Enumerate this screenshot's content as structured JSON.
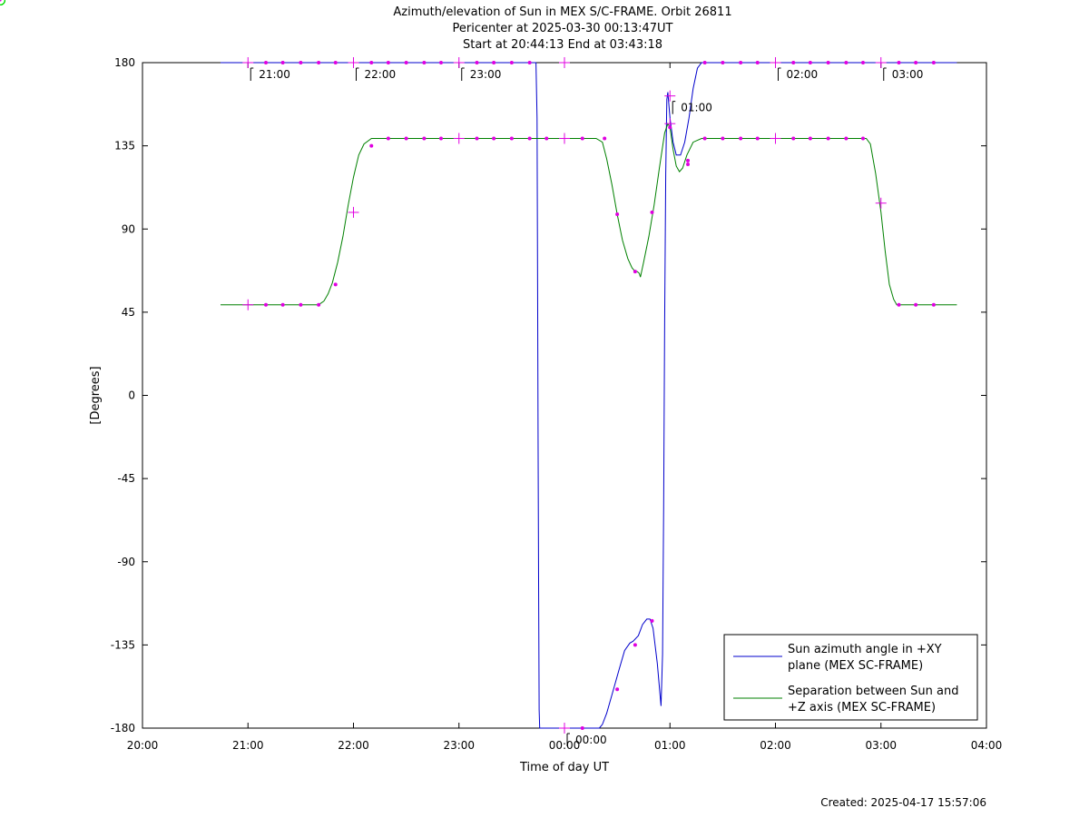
{
  "chart_data": {
    "type": "line",
    "title_lines": [
      "Azimuth/elevation of Sun in MEX S/C-FRAME.  Orbit 26811",
      "Pericenter at 2025-03-30 00:13:47UT",
      "Start at 20:44:13 End at 03:43:18"
    ],
    "xlabel": "Time of day UT",
    "ylabel": "[Degrees]",
    "xlim": [
      20,
      28
    ],
    "ylim": [
      -180,
      180
    ],
    "x_ticks": [
      20,
      21,
      22,
      23,
      24,
      25,
      26,
      27,
      28
    ],
    "x_tick_labels": [
      "20:00",
      "21:00",
      "22:00",
      "23:00",
      "00:00",
      "01:00",
      "02:00",
      "03:00",
      "04:00"
    ],
    "y_ticks": [
      -180,
      -135,
      -90,
      -45,
      0,
      45,
      90,
      135,
      180
    ],
    "y_tick_labels": [
      "-180",
      "-135",
      "-90",
      "-45",
      "0",
      "45",
      "90",
      "135",
      "180"
    ],
    "grid": false,
    "legend_position": "bottom-right",
    "series": [
      {
        "name": "Sun azimuth angle in +XY plane (MEX SC-FRAME)",
        "legend_lines": [
          "Sun azimuth angle in +XY",
          "plane (MEX SC-FRAME)"
        ],
        "color": "#0000cc",
        "points": [
          [
            20.74,
            180
          ],
          [
            21.0,
            180
          ],
          [
            22.0,
            180
          ],
          [
            23.0,
            180
          ],
          [
            23.73,
            180
          ],
          [
            23.74,
            150
          ],
          [
            23.745,
            60
          ],
          [
            23.75,
            -20
          ],
          [
            23.755,
            -100
          ],
          [
            23.76,
            -170
          ],
          [
            23.765,
            -180
          ],
          [
            24.0,
            -180
          ],
          [
            24.33,
            -180
          ],
          [
            24.36,
            -178
          ],
          [
            24.4,
            -172
          ],
          [
            24.45,
            -162
          ],
          [
            24.52,
            -148
          ],
          [
            24.57,
            -138
          ],
          [
            24.62,
            -134
          ],
          [
            24.65,
            -133
          ],
          [
            24.7,
            -130
          ],
          [
            24.74,
            -124
          ],
          [
            24.78,
            -121
          ],
          [
            24.81,
            -121
          ],
          [
            24.84,
            -126
          ],
          [
            24.88,
            -145
          ],
          [
            24.915,
            -168
          ],
          [
            24.93,
            -140
          ],
          [
            24.94,
            -60
          ],
          [
            24.95,
            40
          ],
          [
            24.96,
            120
          ],
          [
            24.97,
            160
          ],
          [
            24.98,
            164
          ],
          [
            25.0,
            150
          ],
          [
            25.03,
            137
          ],
          [
            25.06,
            130
          ],
          [
            25.1,
            130
          ],
          [
            25.14,
            137
          ],
          [
            25.18,
            150
          ],
          [
            25.22,
            166
          ],
          [
            25.26,
            177
          ],
          [
            25.3,
            180
          ],
          [
            26.0,
            180
          ],
          [
            27.0,
            180
          ],
          [
            27.72,
            180
          ]
        ]
      },
      {
        "name": "Separation between Sun and +Z axis (MEX SC-FRAME)",
        "legend_lines": [
          "Separation between Sun and",
          "+Z axis (MEX SC-FRAME)"
        ],
        "color": "#008000",
        "points": [
          [
            20.74,
            49
          ],
          [
            21.0,
            49
          ],
          [
            21.5,
            49
          ],
          [
            21.67,
            49
          ],
          [
            21.72,
            51
          ],
          [
            21.76,
            55
          ],
          [
            21.8,
            61
          ],
          [
            21.85,
            72
          ],
          [
            21.9,
            86
          ],
          [
            21.95,
            103
          ],
          [
            22.0,
            118
          ],
          [
            22.05,
            130
          ],
          [
            22.1,
            136
          ],
          [
            22.17,
            139
          ],
          [
            22.3,
            139
          ],
          [
            23.0,
            139
          ],
          [
            24.0,
            139
          ],
          [
            24.3,
            139
          ],
          [
            24.36,
            137
          ],
          [
            24.4,
            128
          ],
          [
            24.45,
            114
          ],
          [
            24.5,
            98
          ],
          [
            24.55,
            84
          ],
          [
            24.6,
            74
          ],
          [
            24.64,
            69
          ],
          [
            24.67,
            67
          ],
          [
            24.69,
            67
          ],
          [
            24.71,
            66
          ],
          [
            24.72,
            64
          ],
          [
            24.75,
            72
          ],
          [
            24.8,
            86
          ],
          [
            24.85,
            103
          ],
          [
            24.9,
            123
          ],
          [
            24.95,
            142
          ],
          [
            24.98,
            147
          ],
          [
            25.0,
            145
          ],
          [
            25.03,
            133
          ],
          [
            25.06,
            124
          ],
          [
            25.09,
            121
          ],
          [
            25.12,
            123
          ],
          [
            25.16,
            130
          ],
          [
            25.22,
            137
          ],
          [
            25.3,
            139
          ],
          [
            26.0,
            139
          ],
          [
            26.7,
            139
          ],
          [
            26.86,
            139
          ],
          [
            26.9,
            136
          ],
          [
            26.95,
            120
          ],
          [
            27.0,
            99
          ],
          [
            27.04,
            78
          ],
          [
            27.08,
            60
          ],
          [
            27.12,
            52
          ],
          [
            27.15,
            49
          ],
          [
            27.5,
            49
          ],
          [
            27.72,
            49
          ]
        ]
      }
    ],
    "annotations": {
      "time_labels": [
        {
          "text": "21:00",
          "x": 21.0,
          "y": 180
        },
        {
          "text": "22:00",
          "x": 22.0,
          "y": 180
        },
        {
          "text": "23:00",
          "x": 23.0,
          "y": 180
        },
        {
          "text": "00:00",
          "x": 24.0,
          "y": -180
        },
        {
          "text": "01:00",
          "x": 25.0,
          "y": 162
        },
        {
          "text": "02:00",
          "x": 26.0,
          "y": 180
        },
        {
          "text": "03:00",
          "x": 27.0,
          "y": 180
        }
      ],
      "start_end_markers": [
        {
          "x": 20.74,
          "y": 180
        },
        {
          "x": 27.72,
          "y": 180
        },
        {
          "x": 20.74,
          "y": 49
        },
        {
          "x": 27.72,
          "y": 49
        },
        {
          "x": 24.28,
          "y": 139
        },
        {
          "x": 24.28,
          "y": -180
        }
      ],
      "hour_crosses": [
        [
          21.0,
          180
        ],
        [
          22.0,
          180
        ],
        [
          23.0,
          180
        ],
        [
          24.0,
          180
        ],
        [
          26.0,
          180
        ],
        [
          27.0,
          180
        ],
        [
          21.0,
          49
        ],
        [
          22.0,
          99
        ],
        [
          23.0,
          139
        ],
        [
          24.0,
          139
        ],
        [
          25.0,
          147
        ],
        [
          26.0,
          139
        ],
        [
          27.0,
          104
        ],
        [
          24.0,
          -180
        ],
        [
          25.0,
          162
        ]
      ],
      "dots": [
        [
          21.17,
          180
        ],
        [
          21.33,
          180
        ],
        [
          21.5,
          180
        ],
        [
          21.67,
          180
        ],
        [
          21.83,
          180
        ],
        [
          22.17,
          180
        ],
        [
          22.33,
          180
        ],
        [
          22.5,
          180
        ],
        [
          22.67,
          180
        ],
        [
          22.83,
          180
        ],
        [
          23.17,
          180
        ],
        [
          23.33,
          180
        ],
        [
          23.5,
          180
        ],
        [
          23.67,
          180
        ],
        [
          25.33,
          180
        ],
        [
          25.5,
          180
        ],
        [
          25.67,
          180
        ],
        [
          25.83,
          180
        ],
        [
          26.17,
          180
        ],
        [
          26.33,
          180
        ],
        [
          26.5,
          180
        ],
        [
          26.67,
          180
        ],
        [
          26.83,
          180
        ],
        [
          27.17,
          180
        ],
        [
          27.33,
          180
        ],
        [
          27.5,
          180
        ],
        [
          21.17,
          49
        ],
        [
          21.33,
          49
        ],
        [
          21.5,
          49
        ],
        [
          21.67,
          49
        ],
        [
          21.83,
          60
        ],
        [
          22.17,
          135
        ],
        [
          22.33,
          139
        ],
        [
          22.5,
          139
        ],
        [
          22.67,
          139
        ],
        [
          22.83,
          139
        ],
        [
          23.17,
          139
        ],
        [
          23.33,
          139
        ],
        [
          23.5,
          139
        ],
        [
          23.67,
          139
        ],
        [
          23.83,
          139
        ],
        [
          24.17,
          139
        ],
        [
          24.38,
          139
        ],
        [
          24.5,
          98
        ],
        [
          24.67,
          67
        ],
        [
          24.83,
          99
        ],
        [
          25.17,
          125
        ],
        [
          25.33,
          139
        ],
        [
          25.5,
          139
        ],
        [
          25.67,
          139
        ],
        [
          25.83,
          139
        ],
        [
          26.17,
          139
        ],
        [
          26.33,
          139
        ],
        [
          26.5,
          139
        ],
        [
          26.67,
          139
        ],
        [
          26.83,
          139
        ],
        [
          27.17,
          49
        ],
        [
          27.33,
          49
        ],
        [
          27.5,
          49
        ],
        [
          24.17,
          -180
        ],
        [
          24.5,
          -159
        ],
        [
          24.67,
          -135
        ],
        [
          24.83,
          -122
        ],
        [
          25.0,
          145
        ],
        [
          25.17,
          127
        ]
      ]
    }
  },
  "footer": {
    "created": "Created: 2025-04-17 15:57:06"
  }
}
